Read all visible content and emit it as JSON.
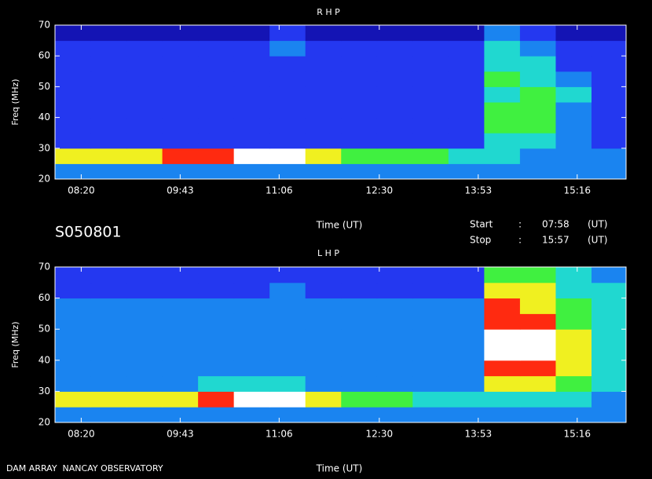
{
  "chart_data": [
    {
      "type": "heatmap",
      "title": "R H P",
      "x_label": "Time (UT)",
      "y_label": "Freq (MHz)",
      "xlim": [
        478,
        957
      ],
      "xticks": [
        {
          "value": 500,
          "label": "08:20"
        },
        {
          "value": 583,
          "label": "09:43"
        },
        {
          "value": 666,
          "label": "11:06"
        },
        {
          "value": 750,
          "label": "12:30"
        },
        {
          "value": 833,
          "label": "13:53"
        },
        {
          "value": 916,
          "label": "15:16"
        }
      ],
      "ylim": [
        20,
        70
      ],
      "yticks": [
        20,
        30,
        40,
        50,
        60,
        70
      ],
      "x_bins": [
        478,
        508,
        538,
        568,
        598,
        628,
        658,
        688,
        718,
        748,
        778,
        808,
        838,
        868,
        898,
        928,
        957
      ],
      "y_bins": [
        20,
        25,
        30,
        35,
        40,
        45,
        50,
        55,
        60,
        65,
        70
      ],
      "colorscale": [
        "#1414b4",
        "#2438f0",
        "#1a84f0",
        "#20d8d0",
        "#40f040",
        "#f0f020",
        "#ff2a10",
        "#ffffff"
      ],
      "z": [
        [
          2,
          2,
          2,
          2,
          2,
          2,
          2,
          2,
          2,
          2,
          2,
          2,
          2,
          2,
          2,
          2
        ],
        [
          5,
          5,
          5,
          6,
          6,
          7,
          7,
          5,
          4,
          4,
          4,
          3,
          3,
          2,
          2,
          2
        ],
        [
          1,
          1,
          1,
          1,
          1,
          1,
          1,
          1,
          1,
          1,
          1,
          1,
          3,
          3,
          2,
          1
        ],
        [
          1,
          1,
          1,
          1,
          1,
          1,
          1,
          1,
          1,
          1,
          1,
          1,
          4,
          4,
          2,
          1
        ],
        [
          1,
          1,
          1,
          1,
          1,
          1,
          1,
          1,
          1,
          1,
          1,
          1,
          4,
          4,
          2,
          1
        ],
        [
          1,
          1,
          1,
          1,
          1,
          1,
          1,
          1,
          1,
          1,
          1,
          1,
          3,
          4,
          3,
          1
        ],
        [
          1,
          1,
          1,
          1,
          1,
          1,
          1,
          1,
          1,
          1,
          1,
          1,
          4,
          3,
          2,
          1
        ],
        [
          1,
          1,
          1,
          1,
          1,
          1,
          1,
          1,
          1,
          1,
          1,
          1,
          3,
          3,
          1,
          1
        ],
        [
          1,
          1,
          1,
          1,
          1,
          1,
          2,
          1,
          1,
          1,
          1,
          1,
          3,
          2,
          1,
          1
        ],
        [
          0,
          0,
          0,
          0,
          0,
          0,
          1,
          0,
          0,
          0,
          0,
          0,
          2,
          1,
          0,
          0
        ]
      ]
    },
    {
      "type": "heatmap",
      "title": "L H P",
      "x_label": "Time (UT)",
      "y_label": "Freq (MHz)",
      "xlim": [
        478,
        957
      ],
      "xticks": [
        {
          "value": 500,
          "label": "08:20"
        },
        {
          "value": 583,
          "label": "09:43"
        },
        {
          "value": 666,
          "label": "11:06"
        },
        {
          "value": 750,
          "label": "12:30"
        },
        {
          "value": 833,
          "label": "13:53"
        },
        {
          "value": 916,
          "label": "15:16"
        }
      ],
      "ylim": [
        20,
        70
      ],
      "yticks": [
        20,
        30,
        40,
        50,
        60,
        70
      ],
      "x_bins": [
        478,
        508,
        538,
        568,
        598,
        628,
        658,
        688,
        718,
        748,
        778,
        808,
        838,
        868,
        898,
        928,
        957
      ],
      "y_bins": [
        20,
        25,
        30,
        35,
        40,
        45,
        50,
        55,
        60,
        65,
        70
      ],
      "colorscale": [
        "#1414b4",
        "#2438f0",
        "#1a84f0",
        "#20d8d0",
        "#40f040",
        "#f0f020",
        "#ff2a10",
        "#ffffff"
      ],
      "z": [
        [
          2,
          2,
          2,
          2,
          2,
          2,
          2,
          2,
          2,
          2,
          2,
          2,
          2,
          2,
          2,
          2
        ],
        [
          5,
          5,
          5,
          5,
          6,
          7,
          7,
          5,
          4,
          4,
          3,
          3,
          3,
          3,
          3,
          2
        ],
        [
          2,
          2,
          2,
          2,
          3,
          3,
          3,
          2,
          2,
          2,
          2,
          2,
          5,
          5,
          4,
          3
        ],
        [
          2,
          2,
          2,
          2,
          2,
          2,
          2,
          2,
          2,
          2,
          2,
          2,
          6,
          6,
          5,
          3
        ],
        [
          2,
          2,
          2,
          2,
          2,
          2,
          2,
          2,
          2,
          2,
          2,
          2,
          7,
          7,
          5,
          3
        ],
        [
          2,
          2,
          2,
          2,
          2,
          2,
          2,
          2,
          2,
          2,
          2,
          2,
          7,
          7,
          5,
          3
        ],
        [
          2,
          2,
          2,
          2,
          2,
          2,
          2,
          2,
          2,
          2,
          2,
          2,
          6,
          6,
          4,
          3
        ],
        [
          2,
          2,
          2,
          2,
          2,
          2,
          2,
          2,
          2,
          2,
          2,
          2,
          6,
          5,
          4,
          3
        ],
        [
          1,
          1,
          1,
          1,
          1,
          1,
          2,
          1,
          1,
          1,
          1,
          1,
          5,
          5,
          3,
          3
        ],
        [
          1,
          1,
          1,
          1,
          1,
          1,
          1,
          1,
          1,
          1,
          1,
          1,
          4,
          4,
          3,
          2
        ]
      ]
    }
  ],
  "info": {
    "id": "S050801",
    "start_label": "Start",
    "stop_label": "Stop",
    "separator": ":",
    "start": "07:58",
    "stop": "15:57",
    "unit": "(UT)"
  },
  "footer": "DAM ARRAY  NANCAY OBSERVATORY"
}
